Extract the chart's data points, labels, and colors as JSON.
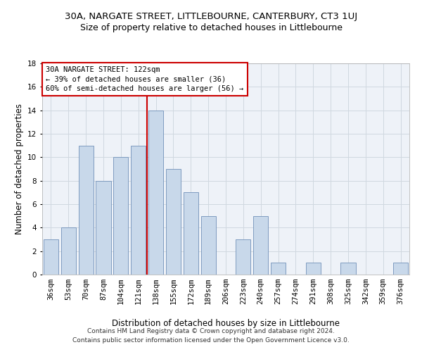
{
  "title1": "30A, NARGATE STREET, LITTLEBOURNE, CANTERBURY, CT3 1UJ",
  "title2": "Size of property relative to detached houses in Littlebourne",
  "xlabel": "Distribution of detached houses by size in Littlebourne",
  "ylabel": "Number of detached properties",
  "categories": [
    "36sqm",
    "53sqm",
    "70sqm",
    "87sqm",
    "104sqm",
    "121sqm",
    "138sqm",
    "155sqm",
    "172sqm",
    "189sqm",
    "206sqm",
    "223sqm",
    "240sqm",
    "257sqm",
    "274sqm",
    "291sqm",
    "308sqm",
    "325sqm",
    "342sqm",
    "359sqm",
    "376sqm"
  ],
  "values": [
    3,
    4,
    11,
    8,
    10,
    11,
    14,
    9,
    7,
    5,
    0,
    3,
    5,
    1,
    0,
    1,
    0,
    1,
    0,
    0,
    1
  ],
  "bar_color": "#c8d8ea",
  "bar_edge_color": "#7090b8",
  "vline_x_index": 5,
  "vline_color": "#cc0000",
  "annotation_line1": "30A NARGATE STREET: 122sqm",
  "annotation_line2": "← 39% of detached houses are smaller (36)",
  "annotation_line3": "60% of semi-detached houses are larger (56) →",
  "annotation_box_color": "white",
  "annotation_box_edge": "#cc0000",
  "ylim": [
    0,
    18
  ],
  "yticks": [
    0,
    2,
    4,
    6,
    8,
    10,
    12,
    14,
    16,
    18
  ],
  "background_color": "#eef2f8",
  "footer": "Contains HM Land Registry data © Crown copyright and database right 2024.\nContains public sector information licensed under the Open Government Licence v3.0.",
  "title1_fontsize": 9.5,
  "title2_fontsize": 9,
  "xlabel_fontsize": 8.5,
  "ylabel_fontsize": 8.5,
  "tick_fontsize": 7.5,
  "annotation_fontsize": 7.5,
  "footer_fontsize": 6.5
}
